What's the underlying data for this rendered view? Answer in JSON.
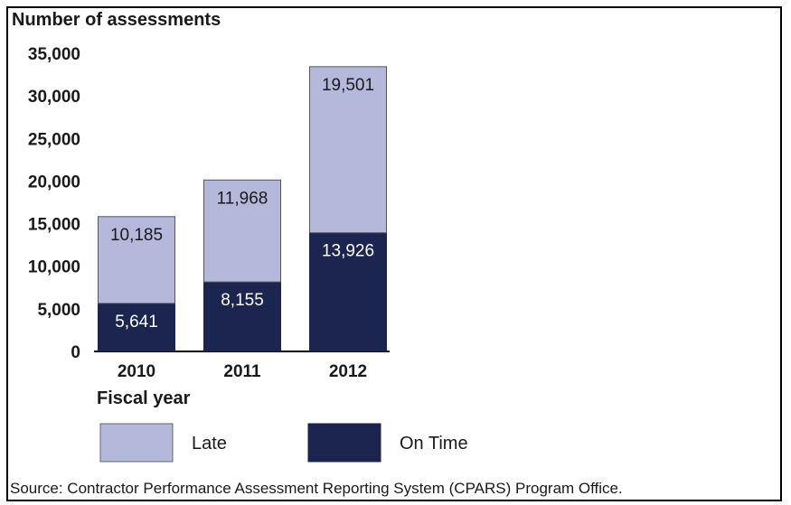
{
  "chart_data": {
    "type": "bar",
    "stacked": true,
    "ylabel": "Number of assessments",
    "xlabel": "Fiscal year",
    "categories": [
      "2010",
      "2011",
      "2012"
    ],
    "ylim": [
      0,
      35000
    ],
    "yticks": [
      "35,000",
      "30,000",
      "25,000",
      "20,000",
      "15,000",
      "10,000",
      "5,000",
      "0"
    ],
    "ytick_values": [
      35000,
      30000,
      25000,
      20000,
      15000,
      10000,
      5000,
      0
    ],
    "series": [
      {
        "name": "On Time",
        "values": [
          5641,
          8155,
          13926
        ],
        "labels": [
          "5,641",
          "8,155",
          "13,926"
        ],
        "color": "#1b2550"
      },
      {
        "name": "Late",
        "values": [
          10185,
          11968,
          19501
        ],
        "labels": [
          "10,185",
          "11,968",
          "19,501"
        ],
        "color": "#b4b9dc"
      }
    ],
    "legend": [
      "Late",
      "On Time"
    ],
    "legend_placement": "bottom",
    "grid": false
  },
  "source_note": "Source: Contractor Performance Assessment Reporting System (CPARS) Program Office."
}
